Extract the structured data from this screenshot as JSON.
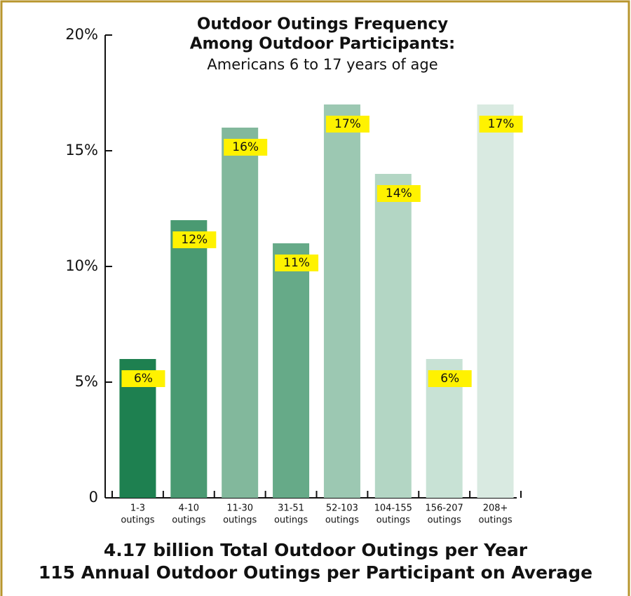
{
  "chart_data": {
    "type": "bar",
    "title": [
      "Outdoor Outings Frequency",
      "Among Outdoor Participants:"
    ],
    "subtitle": "Americans 6 to 17 years of age",
    "categories": [
      [
        "1-3",
        "outings"
      ],
      [
        "4-10",
        "outings"
      ],
      [
        "11-30",
        "outings"
      ],
      [
        "31-51",
        "outings"
      ],
      [
        "52-103",
        "outings"
      ],
      [
        "104-155",
        "outings"
      ],
      [
        "156-207",
        "outings"
      ],
      [
        "208+",
        "outings"
      ]
    ],
    "values": [
      6,
      12,
      16,
      11,
      17,
      14,
      6,
      17
    ],
    "value_labels": [
      "6%",
      "12%",
      "16%",
      "11%",
      "17%",
      "14%",
      "6%",
      "17%"
    ],
    "colors": [
      "#1e8050",
      "#4a9a72",
      "#82b89c",
      "#66aa88",
      "#9cc8b2",
      "#b3d6c4",
      "#c8e2d5",
      "#d9eae1"
    ],
    "label_color": "#fff200",
    "ylim": [
      0,
      20
    ],
    "yticks": [
      0,
      {
        "value": 5,
        "label": "5%"
      },
      {
        "value": 10,
        "label": "10%"
      },
      {
        "value": 15,
        "label": "15%"
      },
      {
        "value": 20,
        "label": "20%"
      }
    ],
    "annotations": [
      "4.17 billion Total Outdoor Outings per Year",
      "115 Annual Outdoor Outings per Participant on Average"
    ]
  }
}
